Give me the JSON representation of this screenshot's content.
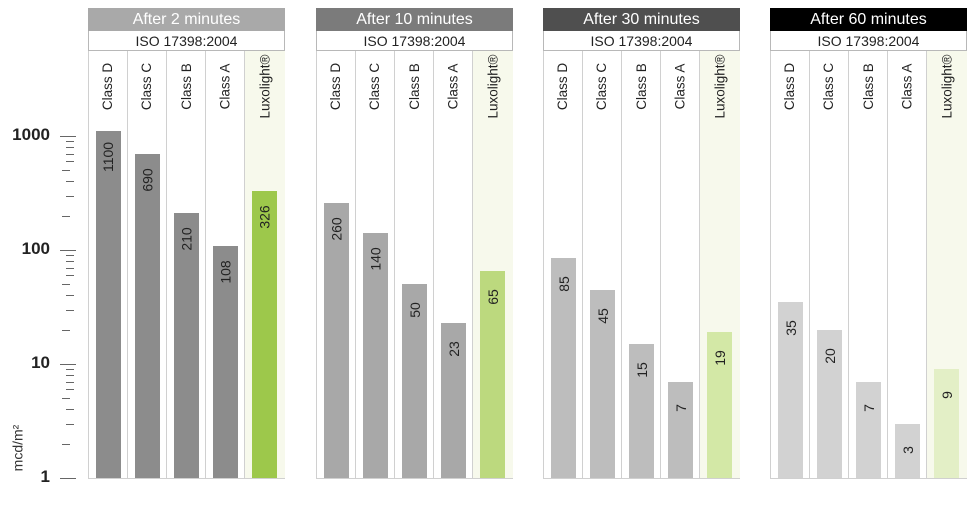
{
  "axis": {
    "ylabel": "mcd/m²",
    "ticks": [
      {
        "label": "1000",
        "value": 1000
      },
      {
        "label": "100",
        "value": 100
      },
      {
        "label": "10",
        "value": 10
      },
      {
        "label": "1",
        "value": 1
      }
    ]
  },
  "chart_data": [
    {
      "type": "bar",
      "title": "After 2 minutes",
      "subtitle": "ISO 17398:2004",
      "ylabel": "mcd/m²",
      "yscale": "log",
      "ylim": [
        1,
        10000
      ],
      "categories": [
        "Class D",
        "Class C",
        "Class B",
        "Class A",
        "Luxolight®"
      ],
      "values": [
        1100,
        690,
        210,
        108,
        326
      ],
      "value_labels": [
        "1100",
        "690",
        "210",
        "108",
        "326"
      ]
    },
    {
      "type": "bar",
      "title": "After 10 minutes",
      "subtitle": "ISO 17398:2004",
      "ylabel": "mcd/m²",
      "yscale": "log",
      "ylim": [
        1,
        10000
      ],
      "categories": [
        "Class D",
        "Class C",
        "Class B",
        "Class A",
        "Luxolight®"
      ],
      "values": [
        260,
        140,
        50,
        23,
        65
      ],
      "value_labels": [
        "260",
        "140",
        "50",
        "23",
        "65"
      ]
    },
    {
      "type": "bar",
      "title": "After 30 minutes",
      "subtitle": "ISO 17398:2004",
      "ylabel": "mcd/m²",
      "yscale": "log",
      "ylim": [
        1,
        10000
      ],
      "categories": [
        "Class D",
        "Class C",
        "Class B",
        "Class A",
        "Luxolight®"
      ],
      "values": [
        85,
        45,
        15,
        7,
        19
      ],
      "value_labels": [
        "85",
        "45",
        "15",
        "7",
        "19"
      ]
    },
    {
      "type": "bar",
      "title": "After 60 minutes",
      "subtitle": "ISO 17398:2004",
      "ylabel": "mcd/m²",
      "yscale": "log",
      "ylim": [
        1,
        10000
      ],
      "categories": [
        "Class D",
        "Class C",
        "Class B",
        "Class A",
        "Luxolight®"
      ],
      "values": [
        35,
        20,
        7,
        3,
        9
      ],
      "value_labels": [
        "35",
        "20",
        "7",
        "3",
        "9"
      ]
    }
  ],
  "colors": {
    "panels": [
      {
        "header": "#a9a9a9",
        "bar": "#8c8c8c",
        "lux_bar": "#9dc84b",
        "lux_bg": "#f7f9ec"
      },
      {
        "header": "#7b7b7b",
        "bar": "#a8a8a8",
        "lux_bar": "#bcd97e",
        "lux_bg": "#f7f9ec"
      },
      {
        "header": "#4f4f4f",
        "bar": "#bdbdbd",
        "lux_bar": "#d3e8a6",
        "lux_bg": "#f7f9ec"
      },
      {
        "header": "#000000",
        "bar": "#d2d2d2",
        "lux_bar": "#e3efc6",
        "lux_bg": "#f7f9ec"
      }
    ]
  }
}
